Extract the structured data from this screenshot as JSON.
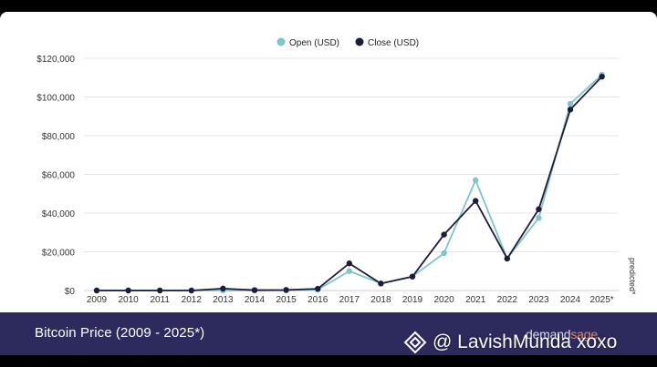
{
  "chart_data": {
    "type": "line",
    "title": "Bitcoin Price (2009 - 2025*)",
    "categories": [
      "2009",
      "2010",
      "2011",
      "2012",
      "2013",
      "2014",
      "2015",
      "2016",
      "2017",
      "2018",
      "2019",
      "2020",
      "2021",
      "2022",
      "2023",
      "2024",
      "2025*"
    ],
    "series": [
      {
        "name": "Open (USD)",
        "color": "#7ec4c9",
        "values": [
          0,
          0,
          0,
          0,
          0,
          0,
          0,
          400,
          10000,
          3700,
          7200,
          19300,
          57000,
          16500,
          37500,
          96500,
          111500
        ]
      },
      {
        "name": "Close (USD)",
        "color": "#1c1c3c",
        "values": [
          0,
          0,
          0,
          0,
          1000,
          200,
          300,
          900,
          14000,
          3600,
          7200,
          28900,
          46300,
          16500,
          42000,
          93500,
          110500
        ]
      }
    ],
    "y_ticks": [
      "$0",
      "$20,000",
      "$40,000",
      "$60,000",
      "$80,000",
      "$100,000",
      "$120,000"
    ],
    "ylim": [
      0,
      120000
    ],
    "legend": "top-center",
    "side_note": "predicted*"
  },
  "footer": {
    "title": "Bitcoin Price (2009 - 2025*)",
    "brand_part1": "demand",
    "brand_part2": "sage"
  },
  "watermark": {
    "text": "@ LavishMunda xoxo"
  }
}
